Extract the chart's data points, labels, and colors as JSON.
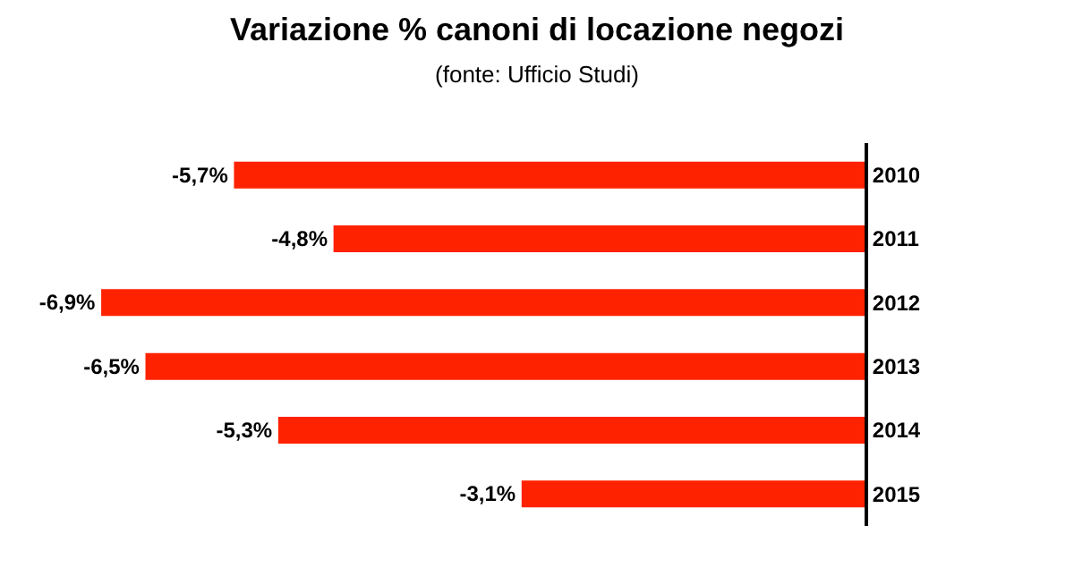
{
  "chart_data": {
    "type": "bar",
    "orientation": "horizontal",
    "title": "Variazione % canoni di locazione negozi",
    "subtitle": "(fonte: Ufficio Studi)",
    "categories": [
      "2010",
      "2011",
      "2012",
      "2013",
      "2014",
      "2015"
    ],
    "series": [
      {
        "color": "#ff2200",
        "values": [
          -5.7,
          -4.8,
          -6.9,
          -6.5,
          -5.3,
          -3.1
        ],
        "value_labels": [
          "-5,7%",
          "-4,8%",
          "-6,9%",
          "-6,5%",
          "-5,3%",
          "-3,1%"
        ]
      }
    ],
    "tick_labels": "y"
  }
}
